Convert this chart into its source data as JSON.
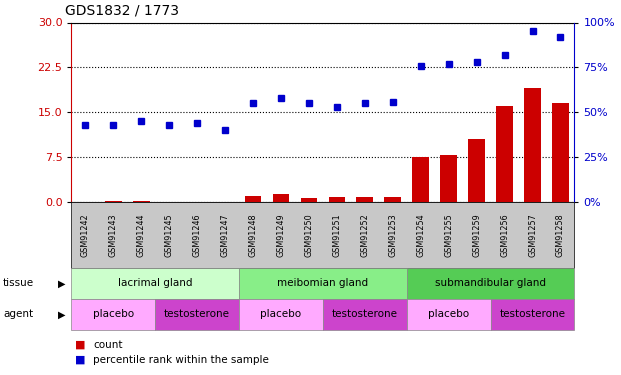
{
  "title": "GDS1832 / 1773",
  "samples": [
    "GSM91242",
    "GSM91243",
    "GSM91244",
    "GSM91245",
    "GSM91246",
    "GSM91247",
    "GSM91248",
    "GSM91249",
    "GSM91250",
    "GSM91251",
    "GSM91252",
    "GSM91253",
    "GSM91254",
    "GSM91255",
    "GSM91259",
    "GSM91256",
    "GSM91257",
    "GSM91258"
  ],
  "count": [
    0.1,
    0.2,
    0.2,
    0.1,
    0.1,
    0.05,
    1.0,
    1.3,
    0.7,
    0.9,
    0.8,
    0.8,
    7.5,
    7.8,
    10.5,
    16.0,
    19.0,
    16.5
  ],
  "percentile": [
    43,
    43,
    45,
    43,
    44,
    40,
    55,
    58,
    55,
    53,
    55,
    56,
    76,
    77,
    78,
    82,
    95,
    92
  ],
  "tissue_groups": [
    {
      "label": "lacrimal gland",
      "start": 0,
      "end": 6,
      "color": "#CCFFCC"
    },
    {
      "label": "meibomian gland",
      "start": 6,
      "end": 12,
      "color": "#88EE88"
    },
    {
      "label": "submandibular gland",
      "start": 12,
      "end": 18,
      "color": "#55CC55"
    }
  ],
  "agent_groups": [
    {
      "label": "placebo",
      "start": 0,
      "end": 3,
      "color": "#FFAAFF"
    },
    {
      "label": "testosterone",
      "start": 3,
      "end": 6,
      "color": "#CC44CC"
    },
    {
      "label": "placebo",
      "start": 6,
      "end": 9,
      "color": "#FFAAFF"
    },
    {
      "label": "testosterone",
      "start": 9,
      "end": 12,
      "color": "#CC44CC"
    },
    {
      "label": "placebo",
      "start": 12,
      "end": 15,
      "color": "#FFAAFF"
    },
    {
      "label": "testosterone",
      "start": 15,
      "end": 18,
      "color": "#CC44CC"
    }
  ],
  "ylim_left": [
    0,
    30
  ],
  "yticks_left": [
    0,
    7.5,
    15,
    22.5,
    30
  ],
  "ylim_right": [
    0,
    100
  ],
  "yticks_right": [
    0,
    25,
    50,
    75,
    100
  ],
  "bar_color": "#CC0000",
  "dot_color": "#0000CC",
  "left_axis_color": "#CC0000",
  "right_axis_color": "#0000CC",
  "legend_count_color": "#CC0000",
  "legend_dot_color": "#0000CC",
  "xlabel_bg_color": "#C8C8C8",
  "tissue_border_color": "#888888",
  "agent_border_color": "#888888"
}
